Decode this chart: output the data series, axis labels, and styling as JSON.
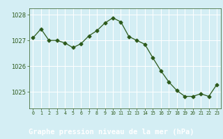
{
  "x": [
    0,
    1,
    2,
    3,
    4,
    5,
    6,
    7,
    8,
    9,
    10,
    11,
    12,
    13,
    14,
    15,
    16,
    17,
    18,
    19,
    20,
    21,
    22,
    23
  ],
  "y": [
    1027.1,
    1027.45,
    1027.0,
    1027.0,
    1026.9,
    1026.72,
    1026.87,
    1027.18,
    1027.38,
    1027.68,
    1027.88,
    1027.72,
    1027.15,
    1027.0,
    1026.85,
    1026.32,
    1025.82,
    1025.38,
    1025.05,
    1024.82,
    1024.82,
    1024.92,
    1024.82,
    1025.28
  ],
  "line_color": "#2d5a1b",
  "marker": "D",
  "marker_size": 2.5,
  "bg_color": "#cce8d0",
  "plot_bg_color": "#d4eef4",
  "grid_color": "#ffffff",
  "bottom_bar_color": "#2d5a1b",
  "xlabel": "Graphe pression niveau de la mer (hPa)",
  "xlabel_color": "#ffffff",
  "xlabel_fontsize": 7.5,
  "ytick_color": "#2d5a1b",
  "xtick_color": "#2d5a1b",
  "yticks": [
    1025,
    1026,
    1027,
    1028
  ],
  "ylim": [
    1024.35,
    1028.25
  ],
  "xlim": [
    -0.5,
    23.5
  ],
  "xtick_labels": [
    "0",
    "1",
    "2",
    "3",
    "4",
    "5",
    "6",
    "7",
    "8",
    "9",
    "10",
    "11",
    "12",
    "13",
    "14",
    "15",
    "16",
    "17",
    "18",
    "19",
    "20",
    "21",
    "22",
    "23"
  ]
}
